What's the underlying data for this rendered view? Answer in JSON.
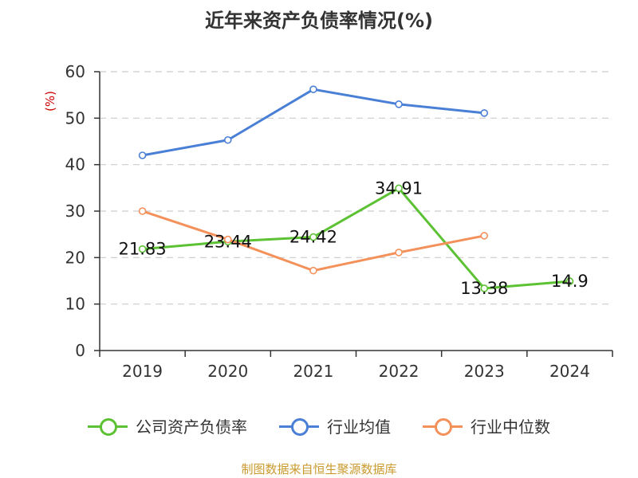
{
  "chart_data": {
    "type": "line",
    "title": "近年来资产负债率情况(%)",
    "ylabel": "(%)",
    "categories": [
      "2019",
      "2020",
      "2021",
      "2022",
      "2023",
      "2024"
    ],
    "ylim": [
      0,
      60
    ],
    "yticks": [
      0,
      10,
      20,
      30,
      40,
      50,
      60
    ],
    "grid": true,
    "legend_position": "bottom",
    "series": [
      {
        "name": "公司资产负债率",
        "color": "#5cc234",
        "values": [
          21.83,
          23.44,
          24.42,
          34.91,
          13.38,
          14.9
        ],
        "labels": [
          "21.83",
          "23.44",
          "24.42",
          "34.91",
          "13.38",
          "14.9"
        ],
        "show_labels": true
      },
      {
        "name": "行业均值",
        "color": "#4a7fd6",
        "values": [
          42.0,
          45.3,
          56.2,
          53.0,
          51.1,
          null
        ],
        "show_labels": false
      },
      {
        "name": "行业中位数",
        "color": "#f4905a",
        "values": [
          30.0,
          23.9,
          17.2,
          21.1,
          24.7,
          null
        ],
        "show_labels": false
      }
    ]
  },
  "source": "制图数据来自恒生聚源数据库"
}
